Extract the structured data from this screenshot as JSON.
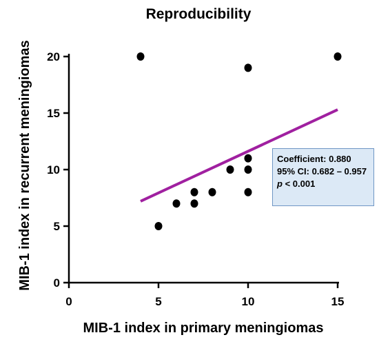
{
  "colors": {
    "regression_line": "#a020a0",
    "points": "#000000",
    "axis": "#000000",
    "annotation_fill": "#dce9f6",
    "annotation_border": "#6f96c4"
  },
  "annotation": {
    "coefficient": "Coefficient: 0.880",
    "ci": "95% CI: 0.682 – 0.957",
    "p_letter": "p",
    "p_rest": " < 0.001"
  },
  "chart_data": {
    "type": "scatter",
    "title": "Reproducibility",
    "xlabel": "MIB-1 index in primary meningiomas",
    "ylabel": "MIB-1 index in recurrent meningiomas",
    "xlim": [
      0,
      15
    ],
    "ylim": [
      0,
      20
    ],
    "xticks": [
      0,
      5,
      10,
      15
    ],
    "yticks": [
      0,
      5,
      10,
      15,
      20
    ],
    "grid": false,
    "points": [
      {
        "x": 4,
        "y": 20
      },
      {
        "x": 5,
        "y": 5
      },
      {
        "x": 6,
        "y": 7
      },
      {
        "x": 7,
        "y": 7
      },
      {
        "x": 7,
        "y": 8
      },
      {
        "x": 8,
        "y": 8
      },
      {
        "x": 9,
        "y": 10
      },
      {
        "x": 10,
        "y": 8
      },
      {
        "x": 10,
        "y": 10
      },
      {
        "x": 10,
        "y": 11
      },
      {
        "x": 10,
        "y": 19
      },
      {
        "x": 15,
        "y": 20
      }
    ],
    "regression_line": {
      "x": [
        4,
        15
      ],
      "y": [
        7.2,
        15.3
      ]
    }
  }
}
